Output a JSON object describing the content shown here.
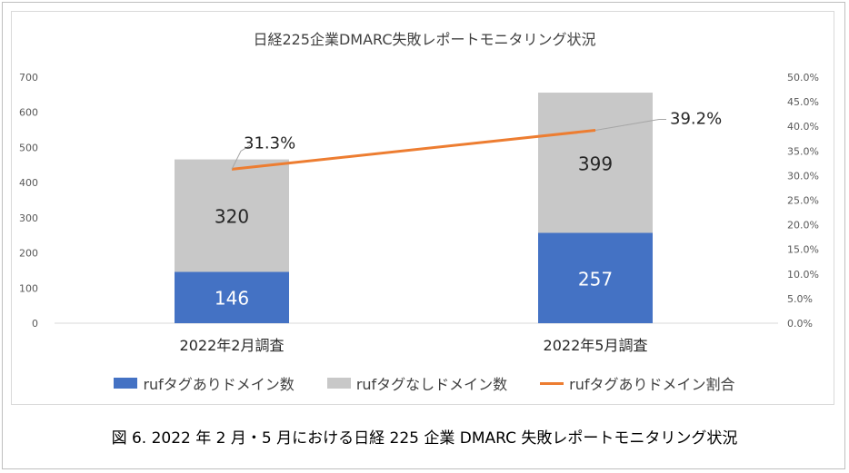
{
  "chart_data": {
    "type": "bar",
    "stacked": true,
    "title": "日経225企業DMARC失敗レポートモニタリング状況",
    "categories": [
      "2022年2月調査",
      "2022年5月調査"
    ],
    "series": [
      {
        "name": "rufタグありドメイン数",
        "values": [
          146,
          257
        ],
        "color": "#4472c4",
        "labels": [
          "146",
          "257"
        ]
      },
      {
        "name": "rufタグなしドメイン数",
        "values": [
          320,
          399
        ],
        "color": "#c8c8c8",
        "labels": [
          "320",
          "399"
        ]
      }
    ],
    "line_series": {
      "name": "rufタグありドメイン割合",
      "values": [
        31.3,
        39.2
      ],
      "color": "#ed7d31",
      "labels": [
        "31.3%",
        "39.2%"
      ]
    },
    "y_left": {
      "min": 0,
      "max": 700,
      "ticks": [
        "0",
        "100",
        "200",
        "300",
        "400",
        "500",
        "600",
        "700"
      ]
    },
    "y_right": {
      "min": 0,
      "max": 50,
      "ticks": [
        "0.0%",
        "5.0%",
        "10.0%",
        "15.0%",
        "20.0%",
        "25.0%",
        "30.0%",
        "35.0%",
        "40.0%",
        "45.0%",
        "50.0%"
      ]
    },
    "legend_position": "bottom",
    "grid": false
  },
  "caption": "図 6. 2022 年 2 月・5 月における日経 225 企業 DMARC 失敗レポートモニタリング状況"
}
